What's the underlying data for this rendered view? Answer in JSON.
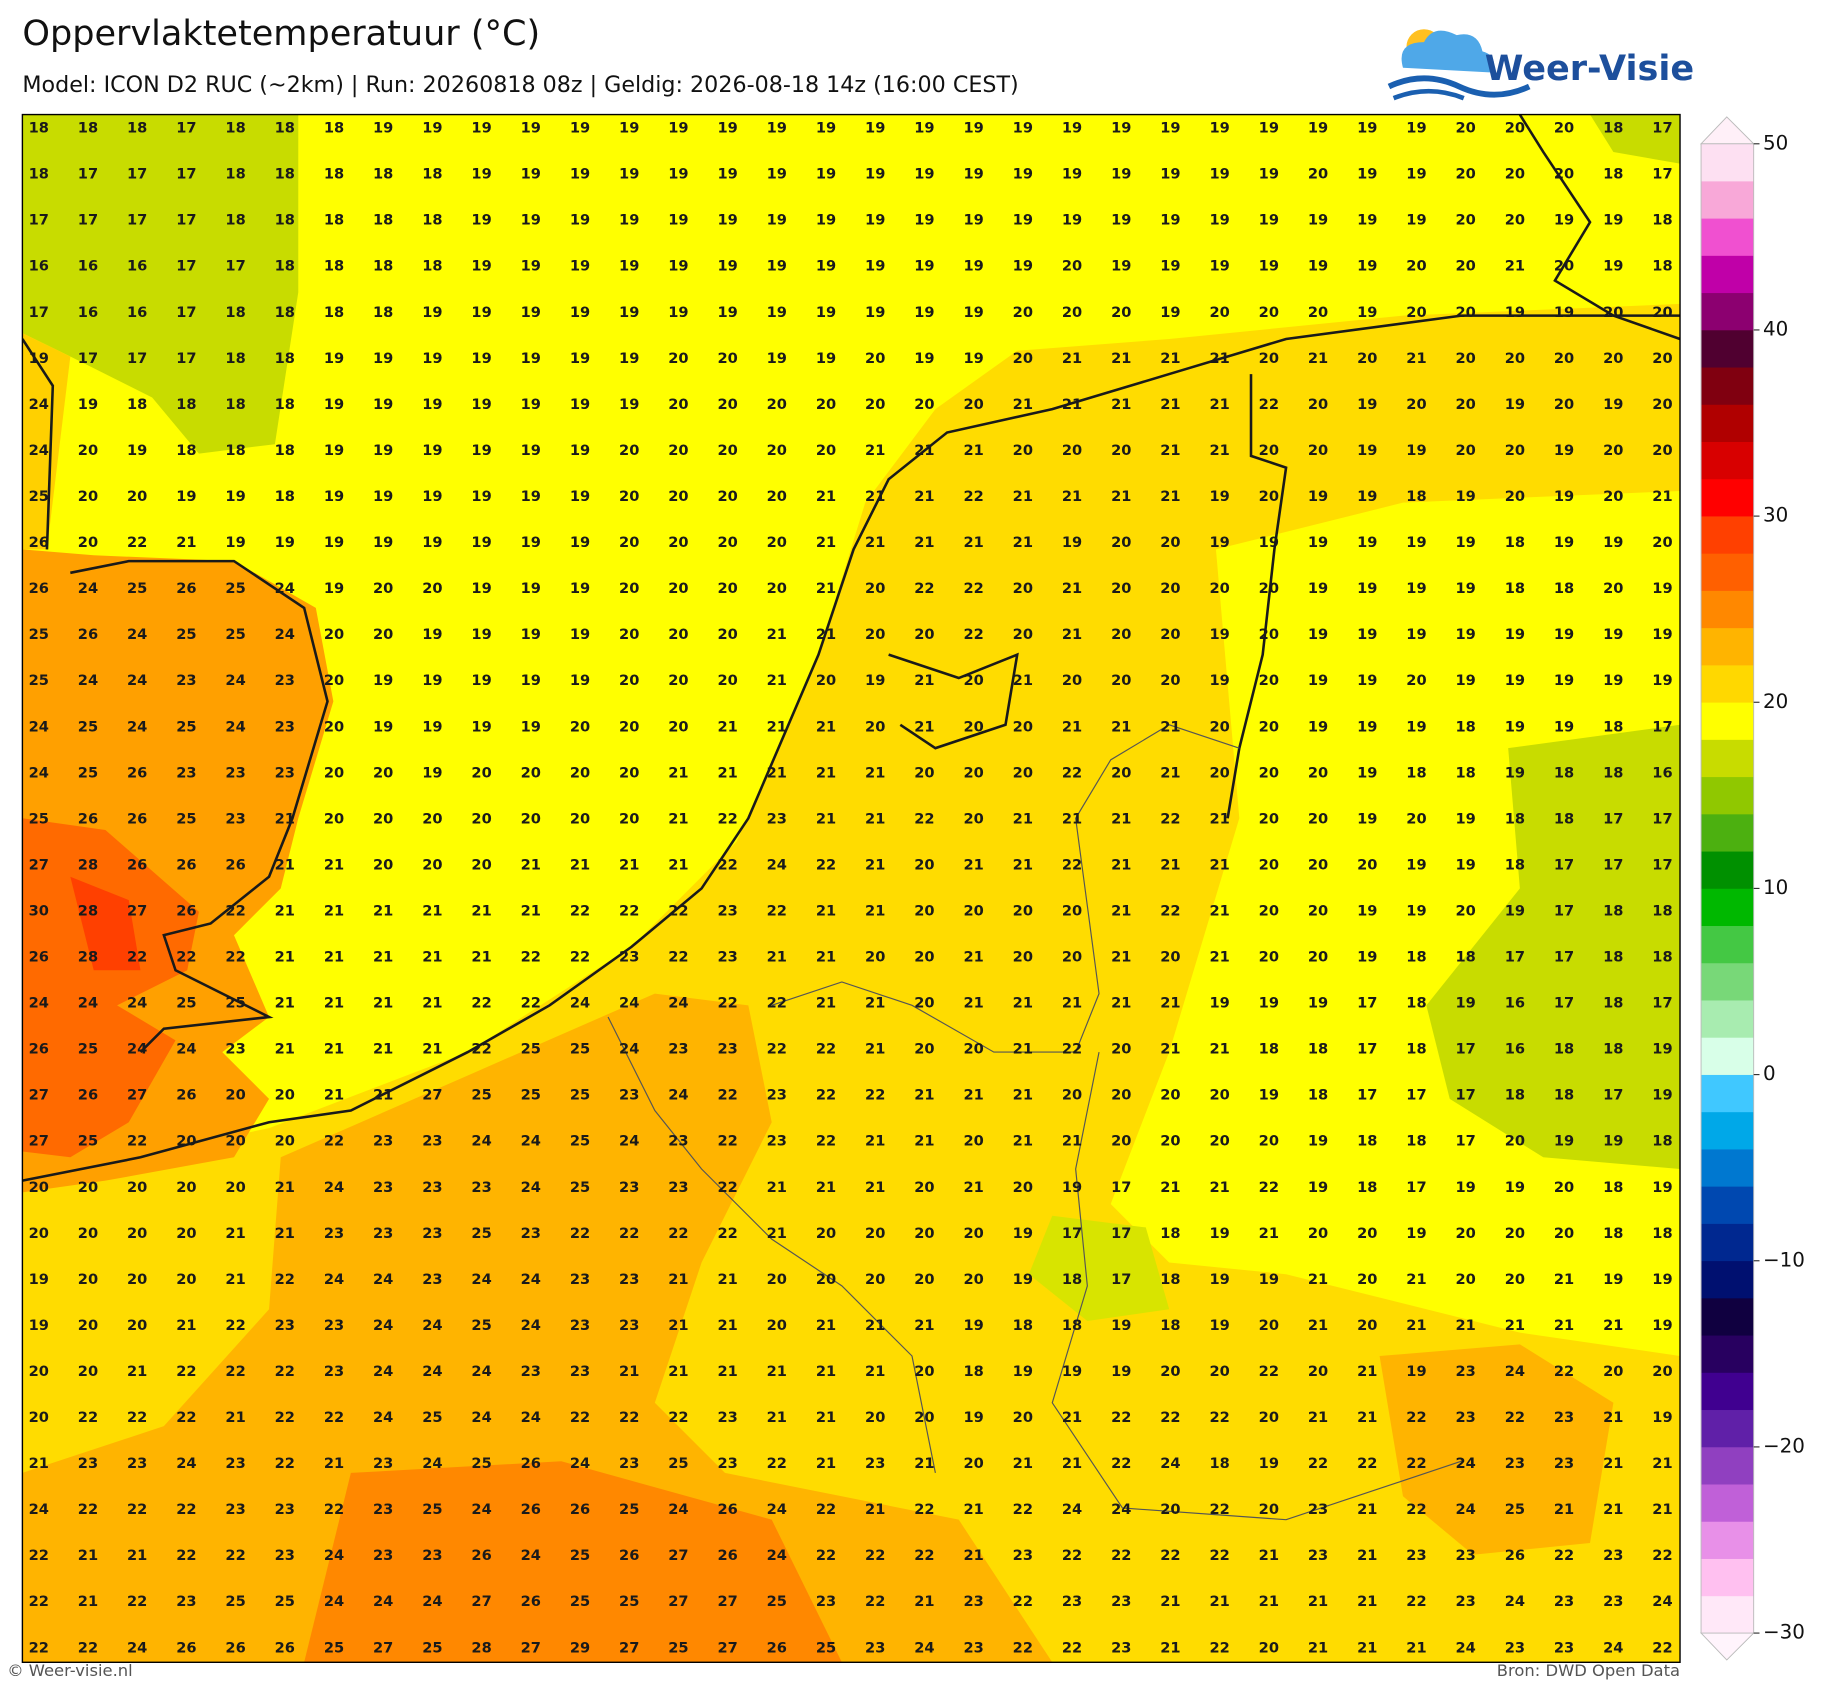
{
  "header": {
    "title": "Oppervlaktetemperatuur (°C)",
    "subtitle": "Model: ICON D2 RUC (~2km)  |  Run: 20260818 08z  |  Geldig: 2026-08-18 14z (16:00 CEST)"
  },
  "logo": {
    "text": "Weer-Visie"
  },
  "footer": {
    "left": "© Weer-visie.nl",
    "right": "Bron: DWD Open Data"
  },
  "colorbar": {
    "range": [
      -30,
      50
    ],
    "ticks": [
      50,
      40,
      30,
      20,
      10,
      0,
      {
        "value": -10,
        "label": "−10"
      },
      {
        "value": -20,
        "label": "−20"
      },
      {
        "value": -30,
        "label": "−30"
      }
    ],
    "colors": [
      "#ffe8f8",
      "#ffc0f0",
      "#e890e8",
      "#c060d8",
      "#9040c0",
      "#6020a8",
      "#400090",
      "#280060",
      "#100040",
      "#001070",
      "#002890",
      "#0048b0",
      "#0078d0",
      "#00a8e8",
      "#40c8ff",
      "#d8ffe8",
      "#a8ecb0",
      "#78d878",
      "#44c844",
      "#00b800",
      "#009000",
      "#4cb010",
      "#90c800",
      "#c8dc00",
      "#ffff00",
      "#ffd800",
      "#ffb400",
      "#ff8800",
      "#ff6000",
      "#ff4000",
      "#ff0000",
      "#d80000",
      "#b00000",
      "#800010",
      "#500030",
      "#8c0070",
      "#c000a8",
      "#f050d0",
      "#f8a8d8",
      "#fde0f2"
    ]
  },
  "grid": {
    "rows": [
      [
        18,
        18,
        18,
        17,
        18,
        18,
        18,
        19,
        19,
        19,
        19,
        19,
        19,
        19,
        19,
        19,
        19,
        19,
        19,
        19,
        19,
        19,
        19,
        19,
        19,
        19,
        19,
        19,
        19,
        20,
        20,
        20,
        18,
        17
      ],
      [
        18,
        17,
        17,
        17,
        18,
        18,
        18,
        18,
        18,
        19,
        19,
        19,
        19,
        19,
        19,
        19,
        19,
        19,
        19,
        19,
        19,
        19,
        19,
        19,
        19,
        19,
        20,
        19,
        19,
        20,
        20,
        20,
        18,
        17
      ],
      [
        17,
        17,
        17,
        17,
        18,
        18,
        18,
        18,
        18,
        19,
        19,
        19,
        19,
        19,
        19,
        19,
        19,
        19,
        19,
        19,
        19,
        19,
        19,
        19,
        19,
        19,
        19,
        19,
        19,
        20,
        20,
        19,
        19,
        18
      ],
      [
        16,
        16,
        16,
        17,
        17,
        18,
        18,
        18,
        18,
        19,
        19,
        19,
        19,
        19,
        19,
        19,
        19,
        19,
        19,
        19,
        19,
        20,
        19,
        19,
        19,
        19,
        19,
        19,
        20,
        20,
        21,
        20,
        19,
        18
      ],
      [
        17,
        16,
        16,
        17,
        18,
        18,
        18,
        18,
        19,
        19,
        19,
        19,
        19,
        19,
        19,
        19,
        19,
        19,
        19,
        19,
        20,
        20,
        20,
        19,
        20,
        20,
        20,
        19,
        20,
        20,
        19,
        19,
        20,
        20
      ],
      [
        19,
        17,
        17,
        17,
        18,
        18,
        19,
        19,
        19,
        19,
        19,
        19,
        19,
        20,
        20,
        19,
        19,
        20,
        19,
        19,
        20,
        21,
        21,
        21,
        21,
        20,
        21,
        20,
        21,
        20,
        20,
        20,
        20,
        20
      ],
      [
        24,
        19,
        18,
        18,
        18,
        18,
        19,
        19,
        19,
        19,
        19,
        19,
        19,
        20,
        20,
        20,
        20,
        20,
        20,
        20,
        21,
        21,
        21,
        21,
        21,
        22,
        20,
        19,
        20,
        20,
        19,
        20,
        19,
        20
      ],
      [
        24,
        20,
        19,
        18,
        18,
        18,
        19,
        19,
        19,
        19,
        19,
        19,
        20,
        20,
        20,
        20,
        20,
        21,
        21,
        21,
        20,
        20,
        20,
        21,
        21,
        20,
        20,
        19,
        19,
        20,
        20,
        19,
        20,
        20
      ],
      [
        25,
        20,
        20,
        19,
        19,
        18,
        19,
        19,
        19,
        19,
        19,
        19,
        20,
        20,
        20,
        20,
        21,
        21,
        21,
        22,
        21,
        21,
        21,
        21,
        19,
        20,
        19,
        19,
        18,
        19,
        20,
        19,
        20,
        21
      ],
      [
        26,
        20,
        22,
        21,
        19,
        19,
        19,
        19,
        19,
        19,
        19,
        19,
        20,
        20,
        20,
        20,
        21,
        21,
        21,
        21,
        21,
        19,
        20,
        20,
        19,
        19,
        19,
        19,
        19,
        19,
        18,
        19,
        19,
        20
      ],
      [
        26,
        24,
        25,
        26,
        25,
        24,
        19,
        20,
        20,
        19,
        19,
        19,
        20,
        20,
        20,
        20,
        21,
        20,
        22,
        22,
        20,
        21,
        20,
        20,
        20,
        20,
        19,
        19,
        19,
        19,
        18,
        18,
        20,
        19
      ],
      [
        25,
        26,
        24,
        25,
        25,
        24,
        20,
        20,
        19,
        19,
        19,
        19,
        20,
        20,
        20,
        21,
        21,
        20,
        20,
        22,
        20,
        21,
        20,
        20,
        19,
        20,
        19,
        19,
        19,
        19,
        19,
        19,
        19,
        19
      ],
      [
        25,
        24,
        24,
        23,
        24,
        23,
        20,
        19,
        19,
        19,
        19,
        19,
        20,
        20,
        20,
        21,
        20,
        19,
        21,
        20,
        21,
        20,
        20,
        20,
        19,
        20,
        19,
        19,
        20,
        19,
        19,
        19,
        19,
        19
      ],
      [
        24,
        25,
        24,
        25,
        24,
        23,
        20,
        19,
        19,
        19,
        19,
        20,
        20,
        20,
        21,
        21,
        21,
        20,
        21,
        20,
        20,
        21,
        21,
        21,
        20,
        20,
        19,
        19,
        19,
        18,
        19,
        19,
        18,
        17
      ],
      [
        24,
        25,
        26,
        23,
        23,
        23,
        20,
        20,
        19,
        20,
        20,
        20,
        20,
        21,
        21,
        21,
        21,
        21,
        20,
        20,
        20,
        22,
        20,
        21,
        20,
        20,
        20,
        19,
        18,
        18,
        19,
        18,
        18,
        16
      ],
      [
        25,
        26,
        26,
        25,
        23,
        21,
        20,
        20,
        20,
        20,
        20,
        20,
        20,
        21,
        22,
        23,
        21,
        21,
        22,
        20,
        21,
        21,
        21,
        22,
        21,
        20,
        20,
        19,
        20,
        19,
        18,
        18,
        17,
        17
      ],
      [
        27,
        28,
        26,
        26,
        26,
        21,
        21,
        20,
        20,
        20,
        21,
        21,
        21,
        21,
        22,
        24,
        22,
        21,
        20,
        21,
        21,
        22,
        21,
        21,
        21,
        20,
        20,
        20,
        19,
        19,
        18,
        17,
        17,
        17
      ],
      [
        30,
        28,
        27,
        26,
        22,
        21,
        21,
        21,
        21,
        21,
        21,
        22,
        22,
        22,
        23,
        22,
        21,
        21,
        20,
        20,
        20,
        20,
        21,
        22,
        21,
        20,
        20,
        19,
        19,
        20,
        19,
        17,
        18,
        18
      ],
      [
        26,
        28,
        22,
        22,
        22,
        21,
        21,
        21,
        21,
        21,
        22,
        22,
        23,
        22,
        23,
        21,
        21,
        20,
        20,
        21,
        20,
        20,
        21,
        20,
        21,
        20,
        20,
        19,
        18,
        18,
        17,
        17,
        18,
        18
      ],
      [
        24,
        24,
        24,
        25,
        25,
        21,
        21,
        21,
        21,
        22,
        22,
        24,
        24,
        24,
        22,
        22,
        21,
        21,
        20,
        21,
        21,
        21,
        21,
        21,
        19,
        19,
        19,
        17,
        18,
        19,
        16,
        17,
        18,
        17
      ],
      [
        26,
        25,
        24,
        24,
        23,
        21,
        21,
        21,
        21,
        22,
        25,
        25,
        24,
        23,
        23,
        22,
        22,
        21,
        20,
        20,
        21,
        22,
        20,
        21,
        21,
        18,
        18,
        17,
        18,
        17,
        16,
        18,
        18,
        19
      ],
      [
        27,
        26,
        27,
        26,
        20,
        20,
        21,
        21,
        27,
        25,
        25,
        25,
        23,
        24,
        22,
        23,
        22,
        22,
        21,
        21,
        21,
        20,
        20,
        20,
        20,
        19,
        18,
        17,
        17,
        17,
        18,
        18,
        17,
        19
      ],
      [
        27,
        25,
        22,
        20,
        20,
        20,
        22,
        23,
        23,
        24,
        24,
        25,
        24,
        23,
        22,
        23,
        22,
        21,
        21,
        20,
        21,
        21,
        20,
        20,
        20,
        20,
        19,
        18,
        18,
        17,
        20,
        19,
        19,
        18
      ],
      [
        20,
        20,
        20,
        20,
        20,
        21,
        24,
        23,
        23,
        23,
        24,
        25,
        23,
        23,
        22,
        21,
        21,
        21,
        20,
        21,
        20,
        19,
        17,
        21,
        21,
        22,
        19,
        18,
        17,
        19,
        19,
        20,
        18,
        19
      ],
      [
        20,
        20,
        20,
        20,
        21,
        21,
        23,
        23,
        23,
        25,
        23,
        22,
        22,
        22,
        22,
        21,
        20,
        20,
        20,
        20,
        19,
        17,
        17,
        18,
        19,
        21,
        20,
        20,
        19,
        20,
        20,
        20,
        18,
        18
      ],
      [
        19,
        20,
        20,
        20,
        21,
        22,
        24,
        24,
        23,
        24,
        24,
        23,
        23,
        21,
        21,
        20,
        20,
        20,
        20,
        20,
        19,
        18,
        17,
        18,
        19,
        19,
        21,
        20,
        21,
        20,
        20,
        21,
        19,
        19
      ],
      [
        19,
        20,
        20,
        21,
        22,
        23,
        23,
        24,
        24,
        25,
        24,
        23,
        23,
        21,
        21,
        20,
        21,
        21,
        21,
        19,
        18,
        18,
        19,
        18,
        19,
        20,
        21,
        20,
        21,
        21,
        21,
        21,
        21,
        19
      ],
      [
        20,
        20,
        21,
        22,
        22,
        22,
        23,
        24,
        24,
        24,
        23,
        23,
        21,
        21,
        21,
        21,
        21,
        21,
        20,
        18,
        19,
        19,
        19,
        20,
        20,
        22,
        20,
        21,
        19,
        23,
        24,
        22,
        20,
        20
      ],
      [
        20,
        22,
        22,
        22,
        21,
        22,
        22,
        24,
        25,
        24,
        24,
        22,
        22,
        22,
        23,
        21,
        21,
        20,
        20,
        19,
        20,
        21,
        22,
        22,
        22,
        20,
        21,
        21,
        22,
        23,
        22,
        23,
        21,
        19
      ],
      [
        21,
        23,
        23,
        24,
        23,
        22,
        21,
        23,
        24,
        25,
        26,
        24,
        23,
        25,
        23,
        22,
        21,
        23,
        21,
        20,
        21,
        21,
        22,
        24,
        18,
        19,
        22,
        22,
        22,
        24,
        23,
        23,
        21,
        21
      ],
      [
        24,
        22,
        22,
        22,
        23,
        23,
        22,
        23,
        25,
        24,
        26,
        26,
        25,
        24,
        26,
        24,
        22,
        21,
        22,
        21,
        22,
        24,
        24,
        20,
        22,
        20,
        23,
        21,
        22,
        24,
        25,
        21,
        21,
        21
      ],
      [
        22,
        21,
        21,
        22,
        22,
        23,
        24,
        23,
        23,
        26,
        24,
        25,
        26,
        27,
        26,
        24,
        22,
        22,
        22,
        21,
        23,
        22,
        22,
        22,
        22,
        21,
        23,
        21,
        23,
        23,
        26,
        22,
        23,
        22
      ],
      [
        22,
        21,
        22,
        23,
        25,
        25,
        24,
        24,
        24,
        27,
        26,
        25,
        25,
        27,
        27,
        25,
        23,
        22,
        21,
        23,
        22,
        23,
        23,
        21,
        21,
        21,
        21,
        21,
        22,
        23,
        24,
        23,
        23,
        24
      ],
      [
        22,
        22,
        24,
        26,
        26,
        26,
        25,
        27,
        25,
        28,
        27,
        29,
        27,
        25,
        27,
        26,
        25,
        23,
        24,
        23,
        22,
        22,
        23,
        21,
        22,
        20,
        21,
        21,
        21,
        24,
        23,
        23,
        24,
        22
      ]
    ]
  }
}
